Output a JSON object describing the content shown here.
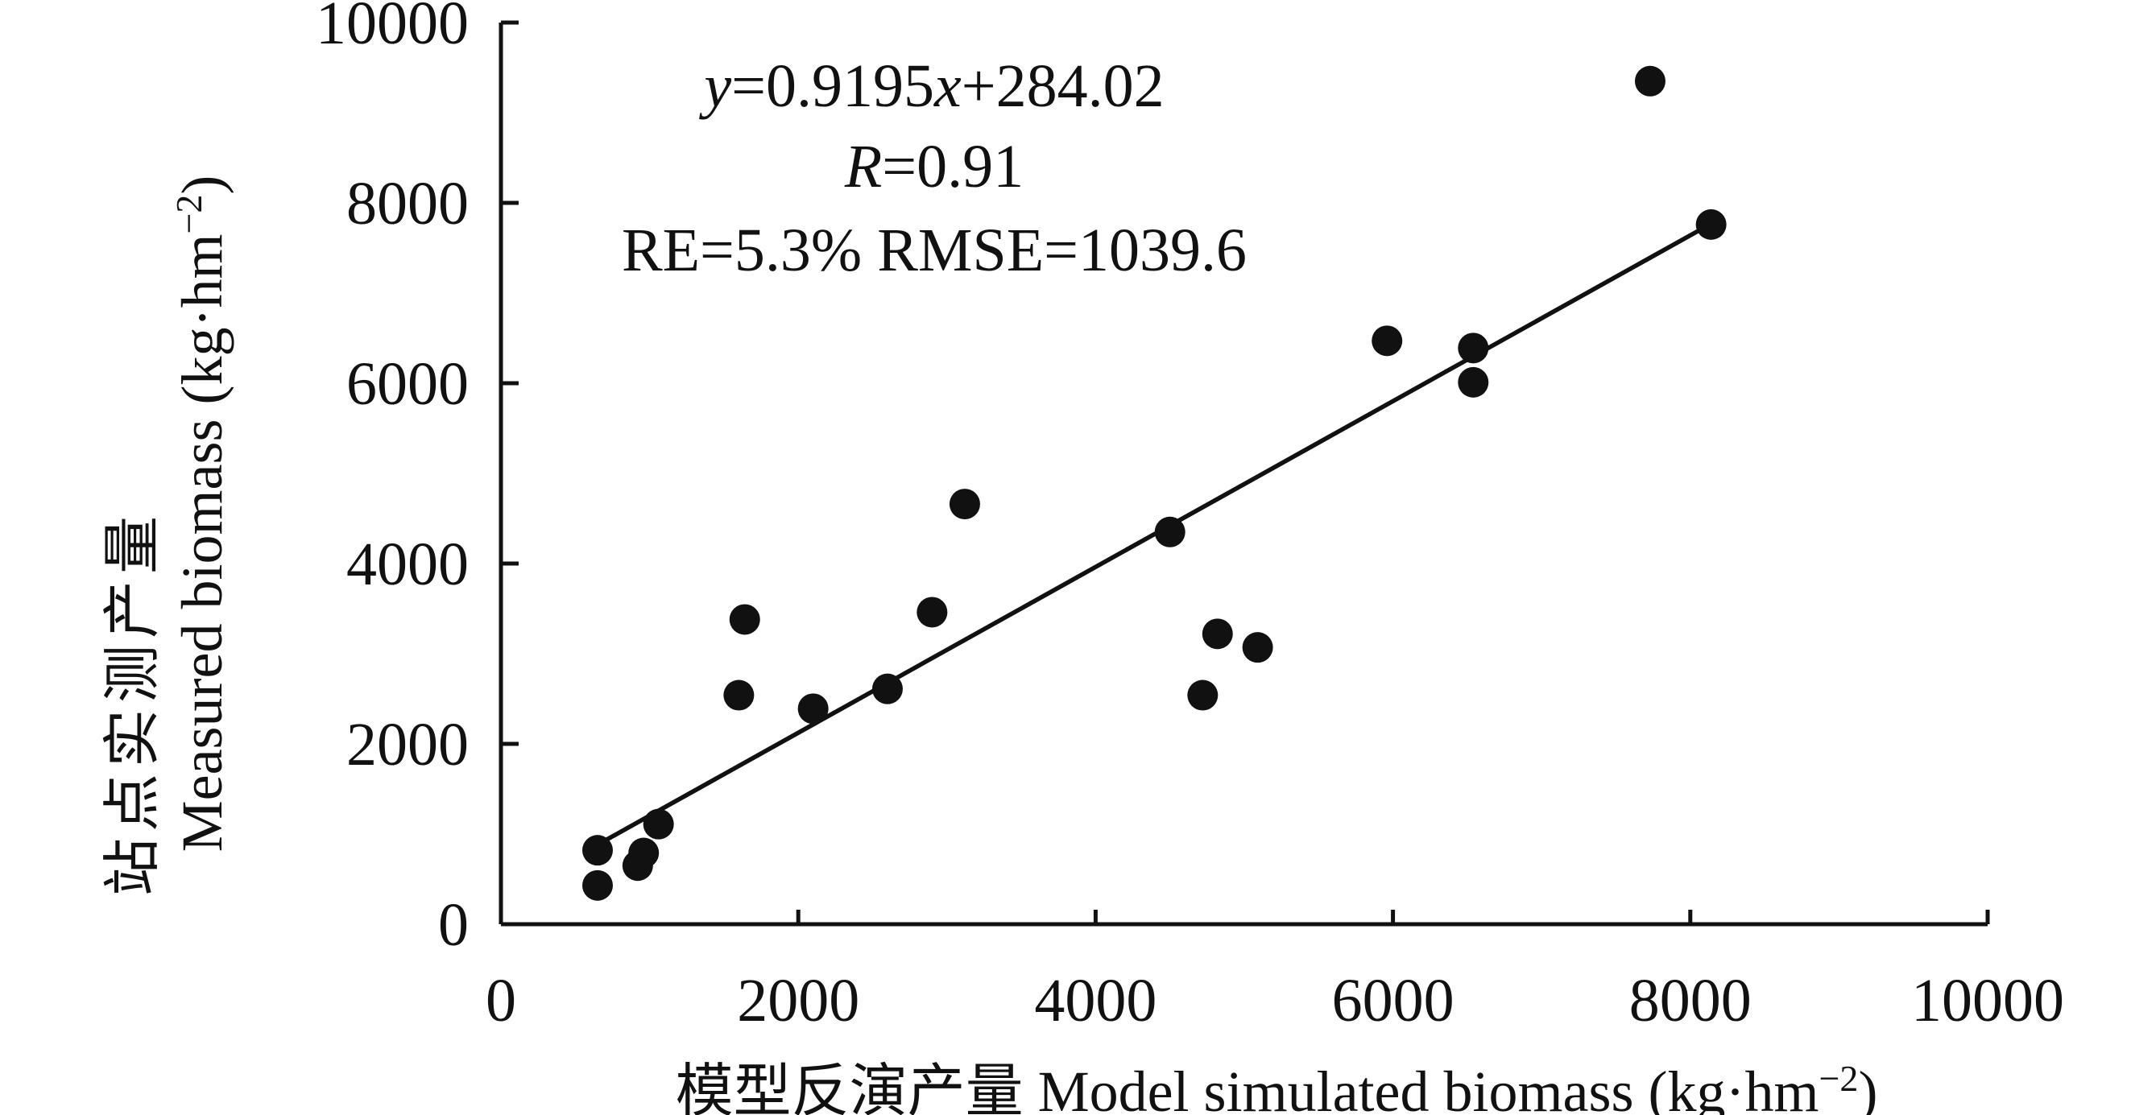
{
  "chart_data": {
    "type": "scatter",
    "title": "",
    "xlabel": "模型反演产量 Model simulated biomass (kg·hm⁻²)",
    "ylabel_cn": "站点实测产量",
    "ylabel_en": "Measured biomass (kg·hm⁻²)",
    "xlim": [
      0,
      10000
    ],
    "ylim": [
      0,
      10000
    ],
    "xticks": [
      "0",
      "2000",
      "4000",
      "6000",
      "8000",
      "10000"
    ],
    "yticks": [
      "0",
      "2000",
      "4000",
      "6000",
      "8000",
      "10000"
    ],
    "grid": false,
    "legend": "none",
    "annotations": {
      "equation": "y=0.9195x+284.02",
      "r": "R=0.91",
      "metrics": "RE=5.3% RMSE=1039.6"
    },
    "fit_line": {
      "slope": 0.9195,
      "intercept": 284.02,
      "x_range": [
        600,
        8150
      ]
    },
    "points": [
      {
        "x": 650,
        "y": 430
      },
      {
        "x": 650,
        "y": 820
      },
      {
        "x": 920,
        "y": 650
      },
      {
        "x": 960,
        "y": 790
      },
      {
        "x": 1060,
        "y": 1110
      },
      {
        "x": 1600,
        "y": 2540
      },
      {
        "x": 1640,
        "y": 3380
      },
      {
        "x": 2100,
        "y": 2390
      },
      {
        "x": 2600,
        "y": 2610
      },
      {
        "x": 2900,
        "y": 3460
      },
      {
        "x": 3120,
        "y": 4660
      },
      {
        "x": 4500,
        "y": 4350
      },
      {
        "x": 4720,
        "y": 2540
      },
      {
        "x": 4820,
        "y": 3220
      },
      {
        "x": 5090,
        "y": 3070
      },
      {
        "x": 5960,
        "y": 6470
      },
      {
        "x": 6540,
        "y": 6390
      },
      {
        "x": 6540,
        "y": 6010
      },
      {
        "x": 7730,
        "y": 9350
      },
      {
        "x": 8140,
        "y": 7760
      }
    ]
  }
}
